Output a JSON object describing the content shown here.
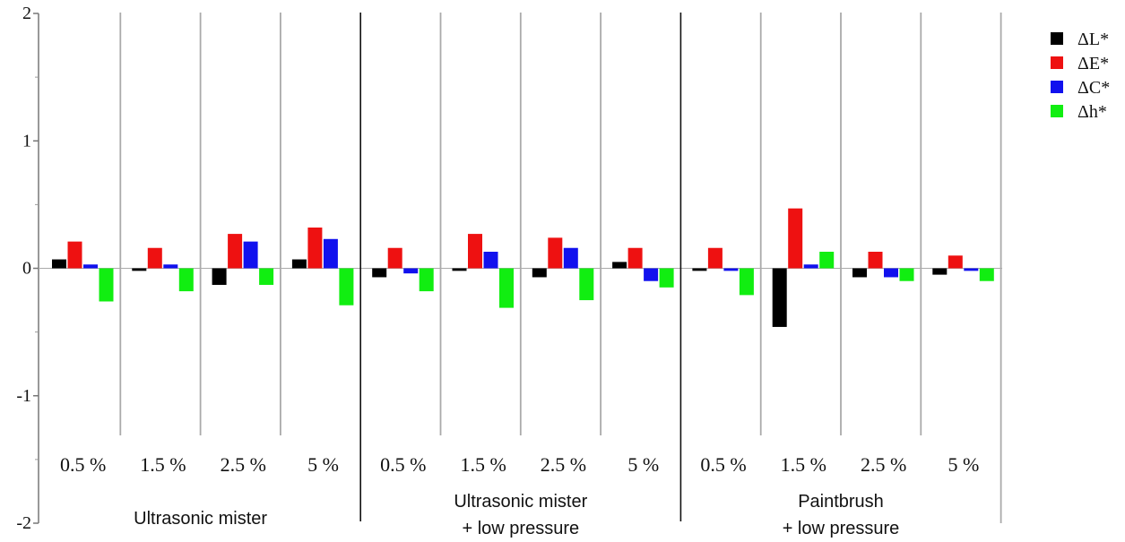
{
  "chart_data": {
    "type": "bar",
    "title": "",
    "xlabel": "",
    "ylabel": "",
    "ylim": [
      -2,
      2
    ],
    "yticks": [
      "-2",
      "-1",
      "0",
      "1",
      "2"
    ],
    "grid": false,
    "legend_position": "top-right",
    "series_names": [
      "ΔL*",
      "ΔE*",
      "ΔC*",
      "Δh*"
    ],
    "series_colors": [
      "#000000",
      "#ee1111",
      "#1111ee",
      "#11ee11"
    ],
    "groups": [
      {
        "label_lines": [
          "Ultrasonic mister"
        ],
        "subgroups": [
          {
            "label": "0.5 %",
            "values": [
              0.07,
              0.21,
              0.03,
              -0.26
            ]
          },
          {
            "label": "1.5 %",
            "values": [
              -0.02,
              0.16,
              0.03,
              -0.18
            ]
          },
          {
            "label": "2.5 %",
            "values": [
              -0.13,
              0.27,
              0.21,
              -0.13
            ]
          },
          {
            "label": "5 %",
            "values": [
              0.07,
              0.32,
              0.23,
              -0.29
            ]
          }
        ]
      },
      {
        "label_lines": [
          "Ultrasonic mister",
          "+ low pressure"
        ],
        "subgroups": [
          {
            "label": "0.5 %",
            "values": [
              -0.07,
              0.16,
              -0.04,
              -0.18
            ]
          },
          {
            "label": "1.5 %",
            "values": [
              -0.02,
              0.27,
              0.13,
              -0.31
            ]
          },
          {
            "label": "2.5 %",
            "values": [
              -0.07,
              0.24,
              0.16,
              -0.25
            ]
          },
          {
            "label": "5 %",
            "values": [
              0.05,
              0.16,
              -0.1,
              -0.15
            ]
          }
        ]
      },
      {
        "label_lines": [
          "Paintbrush",
          "+ low pressure"
        ],
        "subgroups": [
          {
            "label": "0.5 %",
            "values": [
              -0.02,
              0.16,
              -0.02,
              -0.21
            ]
          },
          {
            "label": "1.5 %",
            "values": [
              -0.46,
              0.47,
              0.03,
              0.13
            ]
          },
          {
            "label": "2.5 %",
            "values": [
              -0.07,
              0.13,
              -0.07,
              -0.1
            ]
          },
          {
            "label": "5 %",
            "values": [
              -0.05,
              0.1,
              -0.02,
              -0.1
            ]
          }
        ]
      }
    ]
  }
}
